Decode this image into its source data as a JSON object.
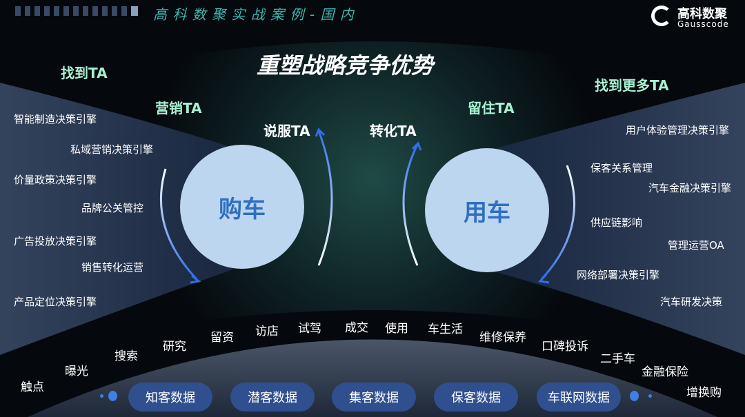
{
  "header": {
    "series_title": "高 科 数 聚 实 战 案 例 - 国 内",
    "logo_cn": "高科数聚",
    "logo_en": "Gausscode"
  },
  "title": "重塑战略竞争优势",
  "ta_labels": {
    "find": "找到TA",
    "market": "营销TA",
    "persuade": "说服TA",
    "convert": "转化TA",
    "retain": "留住TA",
    "find_more": "找到更多TA"
  },
  "circles": {
    "buy": "购车",
    "use": "用车"
  },
  "left_items": [
    "智能制造决策引擎",
    "私域营销决策引擎",
    "价量政策决策引擎",
    "品牌公关管控",
    "广告投放决策引擎",
    "销售转化运营",
    "产品定位决策引擎"
  ],
  "right_items": [
    "用户体验管理决策引擎",
    "保客关系管理",
    "汽车金融决策引擎",
    "供应链影响",
    "管理运营OA",
    "网络部署决策引擎",
    "汽车研发决策"
  ],
  "journey": [
    "触点",
    "曝光",
    "搜索",
    "研究",
    "留资",
    "访店",
    "试驾",
    "成交",
    "使用",
    "车生活",
    "维修保养",
    "口碑投诉",
    "二手车",
    "金融保险",
    "增换购"
  ],
  "data_pills": [
    "知客数据",
    "潜客数据",
    "集客数据",
    "保客数据",
    "车联网数据"
  ],
  "colors": {
    "accent": "#3f7fe8",
    "circle": "#bcd6f0",
    "pill": "#2f4f8f",
    "ta": "#a8f0d0"
  }
}
